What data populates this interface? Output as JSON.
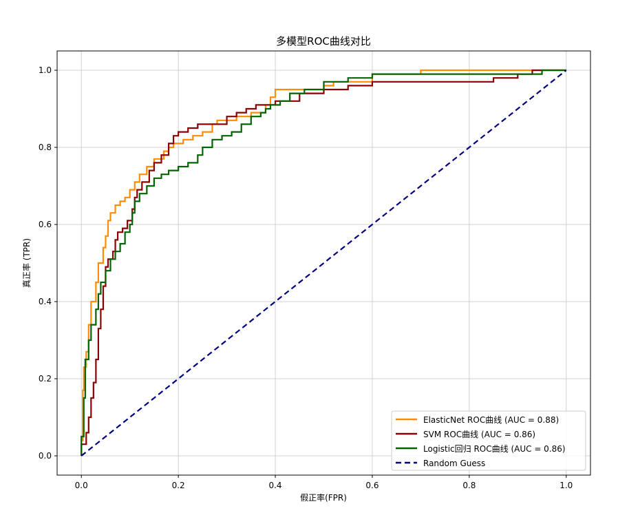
{
  "chart_data": {
    "type": "line",
    "title": "多模型ROC曲线对比",
    "xlabel": "假正率(FPR)",
    "ylabel": "真正率 (TPR)",
    "xlim": [
      -0.05,
      1.05
    ],
    "ylim": [
      -0.05,
      1.05
    ],
    "xticks": [
      "0.0",
      "0.2",
      "0.4",
      "0.6",
      "0.8",
      "1.0"
    ],
    "yticks": [
      "0.0",
      "0.2",
      "0.4",
      "0.6",
      "0.8",
      "1.0"
    ],
    "grid": true,
    "legend_position": "bottom-right",
    "series": [
      {
        "name": "ElasticNet ROC曲线 (AUC = 0.88)",
        "color": "#ff8c00",
        "style": "step",
        "x": [
          0,
          0.003,
          0.005,
          0.01,
          0.015,
          0.02,
          0.03,
          0.035,
          0.045,
          0.05,
          0.055,
          0.06,
          0.07,
          0.08,
          0.09,
          0.1,
          0.11,
          0.12,
          0.135,
          0.15,
          0.17,
          0.18,
          0.19,
          0.21,
          0.23,
          0.25,
          0.27,
          0.28,
          0.32,
          0.35,
          0.38,
          0.39,
          0.4,
          0.42,
          0.5,
          0.52,
          0.6,
          0.7,
          0.72,
          1.0
        ],
        "y": [
          0,
          0.04,
          0.17,
          0.23,
          0.27,
          0.34,
          0.4,
          0.45,
          0.5,
          0.54,
          0.57,
          0.61,
          0.63,
          0.65,
          0.66,
          0.67,
          0.69,
          0.71,
          0.73,
          0.75,
          0.77,
          0.79,
          0.8,
          0.81,
          0.82,
          0.83,
          0.84,
          0.86,
          0.87,
          0.88,
          0.89,
          0.91,
          0.93,
          0.95,
          0.95,
          0.96,
          0.97,
          0.99,
          1.0,
          1.0
        ]
      },
      {
        "name": "SVM ROC曲线 (AUC = 0.86)",
        "color": "#8b0000",
        "style": "step",
        "x": [
          0,
          0.01,
          0.015,
          0.02,
          0.025,
          0.03,
          0.035,
          0.04,
          0.045,
          0.05,
          0.055,
          0.065,
          0.07,
          0.075,
          0.085,
          0.095,
          0.105,
          0.11,
          0.115,
          0.125,
          0.14,
          0.15,
          0.165,
          0.18,
          0.19,
          0.2,
          0.22,
          0.24,
          0.255,
          0.3,
          0.32,
          0.34,
          0.36,
          0.38,
          0.4,
          0.45,
          0.5,
          0.55,
          0.6,
          0.7,
          0.85,
          0.9,
          0.93,
          0.94,
          1.0
        ],
        "y": [
          0,
          0.03,
          0.06,
          0.1,
          0.15,
          0.19,
          0.25,
          0.33,
          0.38,
          0.44,
          0.49,
          0.51,
          0.53,
          0.56,
          0.58,
          0.59,
          0.61,
          0.64,
          0.67,
          0.69,
          0.71,
          0.74,
          0.76,
          0.78,
          0.81,
          0.83,
          0.84,
          0.85,
          0.86,
          0.86,
          0.88,
          0.89,
          0.9,
          0.91,
          0.91,
          0.92,
          0.94,
          0.95,
          0.96,
          0.97,
          0.97,
          0.98,
          0.99,
          1.0,
          1.0
        ]
      },
      {
        "name": "Logistic回归 ROC曲线 (AUC = 0.86)",
        "color": "#006400",
        "style": "step",
        "x": [
          0,
          0.005,
          0.008,
          0.015,
          0.02,
          0.03,
          0.035,
          0.04,
          0.05,
          0.06,
          0.07,
          0.08,
          0.09,
          0.1,
          0.105,
          0.11,
          0.12,
          0.135,
          0.15,
          0.165,
          0.18,
          0.2,
          0.22,
          0.24,
          0.25,
          0.27,
          0.29,
          0.31,
          0.33,
          0.35,
          0.37,
          0.38,
          0.39,
          0.41,
          0.43,
          0.46,
          0.5,
          0.55,
          0.6,
          0.65,
          0.95,
          0.96,
          1.0
        ],
        "y": [
          0,
          0.05,
          0.15,
          0.25,
          0.3,
          0.34,
          0.38,
          0.42,
          0.45,
          0.48,
          0.51,
          0.53,
          0.55,
          0.58,
          0.6,
          0.63,
          0.66,
          0.68,
          0.7,
          0.72,
          0.73,
          0.74,
          0.75,
          0.76,
          0.78,
          0.8,
          0.82,
          0.83,
          0.84,
          0.86,
          0.88,
          0.89,
          0.9,
          0.91,
          0.92,
          0.94,
          0.95,
          0.97,
          0.98,
          0.99,
          0.99,
          1.0,
          1.0
        ]
      },
      {
        "name": "Random Guess",
        "color": "#000080",
        "style": "dashed",
        "x": [
          0,
          1
        ],
        "y": [
          0,
          1
        ]
      }
    ]
  }
}
